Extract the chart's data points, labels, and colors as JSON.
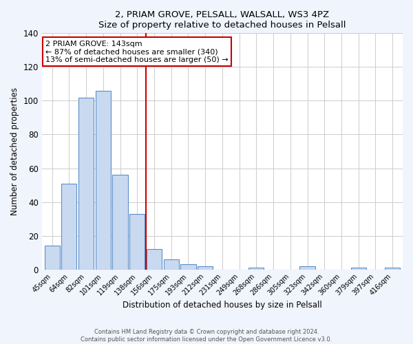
{
  "title1": "2, PRIAM GROVE, PELSALL, WALSALL, WS3 4PZ",
  "title2": "Size of property relative to detached houses in Pelsall",
  "xlabel": "Distribution of detached houses by size in Pelsall",
  "ylabel": "Number of detached properties",
  "bar_labels": [
    "45sqm",
    "64sqm",
    "82sqm",
    "101sqm",
    "119sqm",
    "138sqm",
    "156sqm",
    "175sqm",
    "193sqm",
    "212sqm",
    "231sqm",
    "249sqm",
    "268sqm",
    "286sqm",
    "305sqm",
    "323sqm",
    "342sqm",
    "360sqm",
    "379sqm",
    "397sqm",
    "416sqm"
  ],
  "bar_values": [
    14,
    51,
    102,
    106,
    56,
    33,
    12,
    6,
    3,
    2,
    0,
    0,
    1,
    0,
    0,
    2,
    0,
    0,
    1,
    0,
    1
  ],
  "bar_color": "#c8d9f0",
  "bar_edge_color": "#5b8fc9",
  "vline_x": 5.5,
  "vline_color": "#cc0000",
  "annotation_lines": [
    "2 PRIAM GROVE: 143sqm",
    "← 87% of detached houses are smaller (340)",
    "13% of semi-detached houses are larger (50) →"
  ],
  "annotation_box_color": "#ffffff",
  "annotation_box_edge": "#cc0000",
  "ylim": [
    0,
    140
  ],
  "yticks": [
    0,
    20,
    40,
    60,
    80,
    100,
    120,
    140
  ],
  "footer1": "Contains HM Land Registry data © Crown copyright and database right 2024.",
  "footer2": "Contains public sector information licensed under the Open Government Licence v3.0.",
  "bg_color": "#f0f4fc",
  "plot_bg_color": "#ffffff"
}
